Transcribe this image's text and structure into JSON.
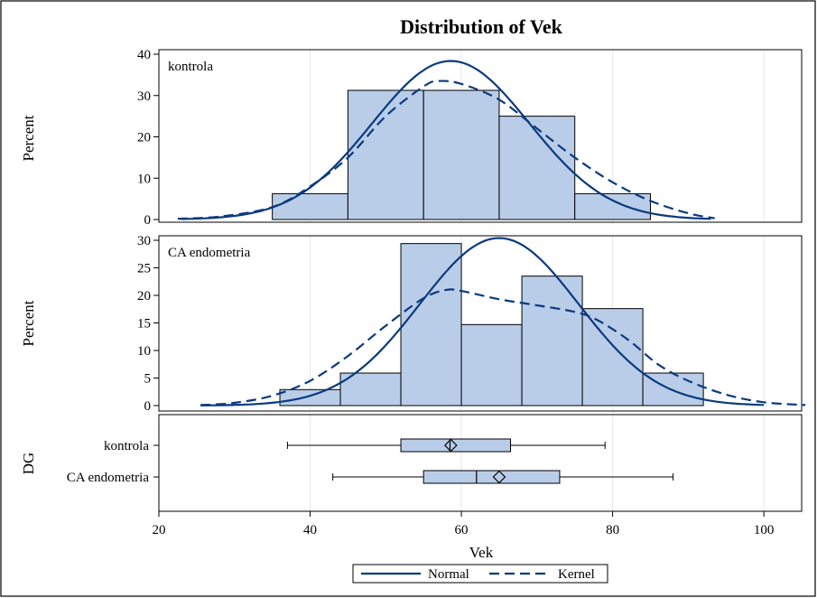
{
  "chart_data": {
    "type": "histogram",
    "title": "Distribution of Vek",
    "xlabel": "Vek",
    "ylabel": "Percent",
    "group_axis_label": "DG",
    "xlim": [
      20,
      105
    ],
    "x_ticks": [
      20,
      40,
      60,
      80,
      100
    ],
    "colors": {
      "bar_fill": "#b9cde9",
      "curve": "#0a3a7e",
      "edge": "#000000"
    },
    "panels": [
      {
        "name": "kontrola",
        "ylim": [
          0,
          40
        ],
        "y_ticks": [
          0,
          10,
          20,
          30,
          40
        ],
        "bins": [
          {
            "x0": 35,
            "x1": 45,
            "value": 6.25
          },
          {
            "x0": 45,
            "x1": 55,
            "value": 31.25
          },
          {
            "x0": 55,
            "x1": 65,
            "value": 31.25
          },
          {
            "x0": 65,
            "x1": 75,
            "value": 25
          },
          {
            "x0": 75,
            "x1": 85,
            "value": 6.25
          }
        ],
        "normal": {
          "mean": 58.6,
          "sd": 10.4,
          "x_range": [
            23,
            93
          ]
        },
        "kernel": [
          [
            22.5,
            0.2
          ],
          [
            28,
            0.7
          ],
          [
            35,
            3
          ],
          [
            40,
            8
          ],
          [
            45,
            15
          ],
          [
            50,
            25
          ],
          [
            55,
            32.2
          ],
          [
            57,
            33.5
          ],
          [
            60,
            32.8
          ],
          [
            65,
            29
          ],
          [
            70,
            22
          ],
          [
            75,
            15
          ],
          [
            80,
            9
          ],
          [
            85,
            4.5
          ],
          [
            90,
            1.5
          ],
          [
            93.5,
            0.3
          ]
        ]
      },
      {
        "name": "CA endometria",
        "ylim": [
          0,
          30
        ],
        "y_ticks": [
          0,
          5,
          10,
          15,
          20,
          25,
          30
        ],
        "bins": [
          {
            "x0": 36,
            "x1": 44,
            "value": 2.9
          },
          {
            "x0": 44,
            "x1": 52,
            "value": 5.9
          },
          {
            "x0": 52,
            "x1": 60,
            "value": 29.4
          },
          {
            "x0": 60,
            "x1": 68,
            "value": 14.7
          },
          {
            "x0": 68,
            "x1": 76,
            "value": 23.5
          },
          {
            "x0": 76,
            "x1": 84,
            "value": 17.6
          },
          {
            "x0": 84,
            "x1": 92,
            "value": 5.9
          }
        ],
        "normal": {
          "mean": 65,
          "sd": 10.5,
          "x_range": [
            25.5,
            100
          ]
        },
        "kernel": [
          [
            25.5,
            0.1
          ],
          [
            30,
            0.5
          ],
          [
            35,
            1.8
          ],
          [
            40,
            4.5
          ],
          [
            45,
            9
          ],
          [
            50,
            14.5
          ],
          [
            55,
            19.5
          ],
          [
            58,
            21
          ],
          [
            60,
            20.8
          ],
          [
            65,
            19.3
          ],
          [
            70,
            18.2
          ],
          [
            75,
            17
          ],
          [
            78,
            15.5
          ],
          [
            82,
            12
          ],
          [
            86,
            7.5
          ],
          [
            90,
            4.5
          ],
          [
            95,
            2
          ],
          [
            100,
            0.6
          ],
          [
            105.5,
            0.1
          ]
        ]
      }
    ],
    "boxplots": [
      {
        "group": "kontrola",
        "min": 37,
        "q1": 52,
        "median": 58.5,
        "mean": 58.6,
        "q3": 66.5,
        "max": 79
      },
      {
        "group": "CA endometria",
        "min": 43,
        "q1": 55,
        "median": 62,
        "mean": 65,
        "q3": 73,
        "max": 88
      }
    ],
    "legend": {
      "position": "bottom-center",
      "entries": [
        {
          "label": "Normal",
          "style": "solid"
        },
        {
          "label": "Kernel",
          "style": "dashed"
        }
      ]
    }
  }
}
